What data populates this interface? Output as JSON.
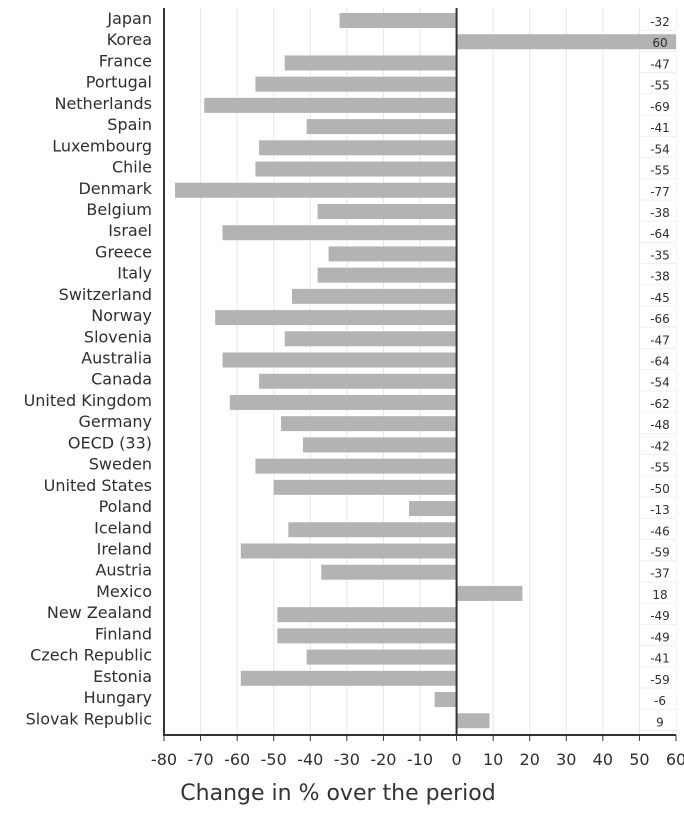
{
  "chart_data": {
    "type": "bar",
    "orientation": "horizontal",
    "categories": [
      "Japan",
      "Korea",
      "France",
      "Portugal",
      "Netherlands",
      "Spain",
      "Luxembourg",
      "Chile",
      "Denmark",
      "Belgium",
      "Israel",
      "Greece",
      "Italy",
      "Switzerland",
      "Norway",
      "Slovenia",
      "Australia",
      "Canada",
      "United Kingdom",
      "Germany",
      "OECD (33)",
      "Sweden",
      "United States",
      "Poland",
      "Iceland",
      "Ireland",
      "Austria",
      "Mexico",
      "New Zealand",
      "Finland",
      "Czech Republic",
      "Estonia",
      "Hungary",
      "Slovak Republic"
    ],
    "values": [
      -32,
      60,
      -47,
      -55,
      -69,
      -41,
      -54,
      -55,
      -77,
      -38,
      -64,
      -35,
      -38,
      -45,
      -66,
      -47,
      -64,
      -54,
      -62,
      -48,
      -42,
      -55,
      -50,
      -13,
      -46,
      -59,
      -37,
      18,
      -49,
      -49,
      -41,
      -59,
      -6,
      9
    ],
    "value_labels": [
      "-32",
      "60",
      "-47",
      "-55",
      "-69",
      "-41",
      "-54",
      "-55",
      "-77",
      "-38",
      "-64",
      "-35",
      "-38",
      "-45",
      "-66",
      "-47",
      "-64",
      "-54",
      "-62",
      "-48",
      "-42",
      "-55",
      "-50",
      "-13",
      "-46",
      "-59",
      "-37",
      "18",
      "-49",
      "-49",
      "-41",
      "-59",
      "-6",
      "9"
    ],
    "xlim": [
      -80,
      60
    ],
    "xticks": [
      -80,
      -70,
      -60,
      -50,
      -40,
      -30,
      -20,
      -10,
      0,
      10,
      20,
      30,
      40,
      50,
      60
    ],
    "xlabel": "Change in % over the period",
    "ylabel": "",
    "title": "",
    "grid": true,
    "bar_color": "#b3b3b3",
    "grid_color": "#e6e6e6",
    "axis_color": "#333333"
  }
}
